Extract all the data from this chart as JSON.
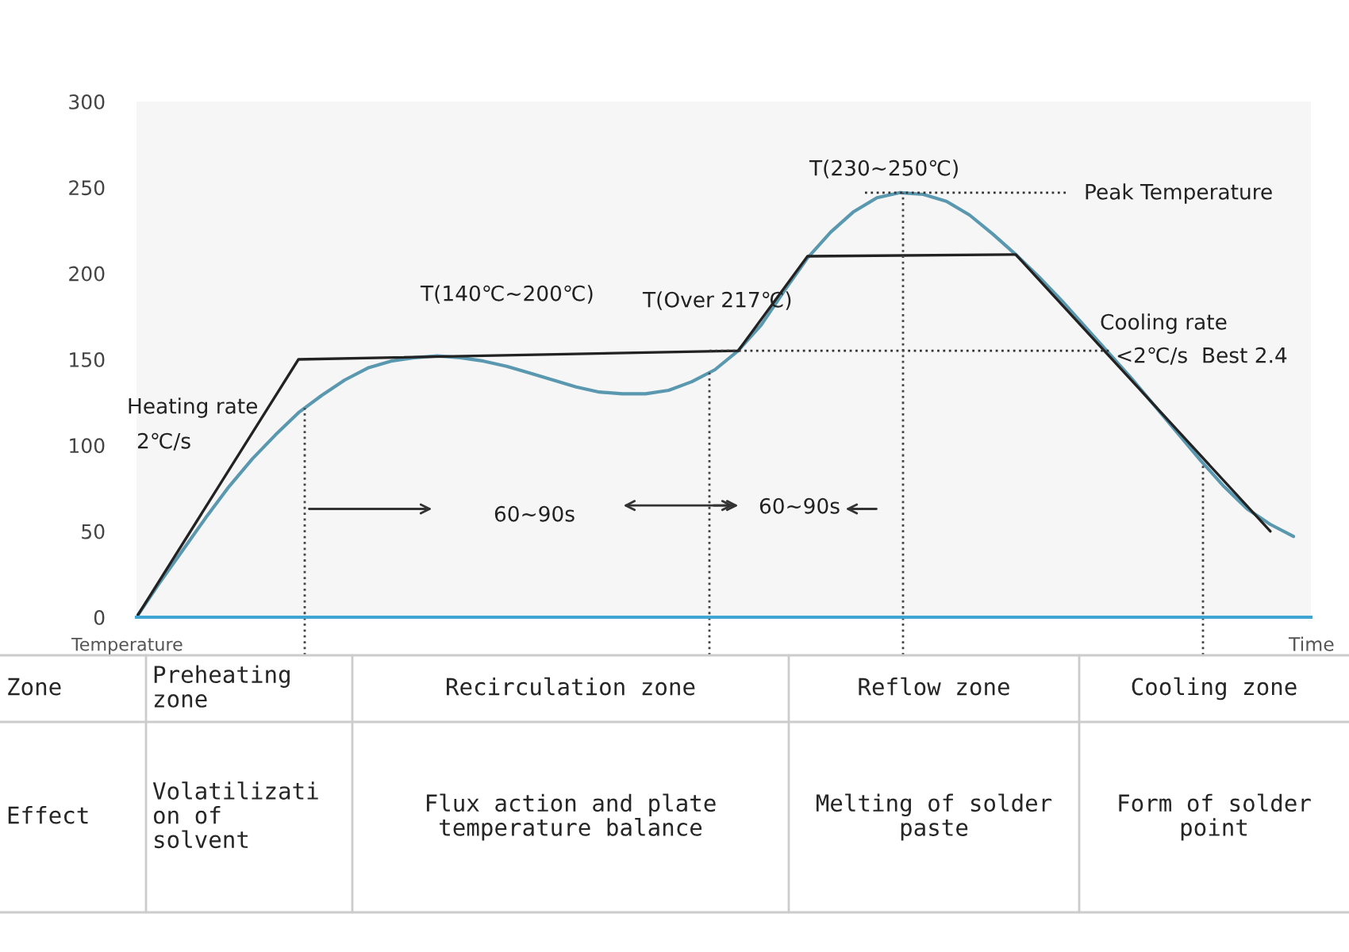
{
  "chart_data": {
    "type": "line",
    "xlabel": "Time",
    "ylabel": "Temperature",
    "categories": [
      null,
      null,
      null,
      null,
      null,
      null,
      null,
      null,
      null,
      null,
      null,
      null,
      null,
      null,
      null,
      null,
      null,
      null,
      null,
      null,
      null,
      null,
      null,
      null,
      null,
      null,
      null,
      null,
      null,
      null,
      null,
      null,
      null,
      null,
      null,
      null,
      null,
      null,
      null,
      null,
      null,
      null,
      null,
      null,
      null,
      null,
      null,
      null,
      null,
      null,
      null
    ],
    "series": [
      {
        "color": "#5a98b0",
        "values": [
          0,
          20,
          39,
          58,
          76,
          92,
          106,
          119,
          129,
          138,
          145,
          149,
          151,
          152,
          151,
          149,
          146,
          142,
          138,
          134,
          131,
          130,
          130,
          132,
          137,
          144,
          155,
          170,
          190,
          209,
          224,
          236,
          244,
          247,
          246,
          242,
          234,
          223,
          211,
          198,
          184,
          169,
          154,
          139,
          123,
          107,
          91,
          76,
          63,
          54,
          47
        ]
      },
      {
        "color": "#222222",
        "values": [
          0,
          null,
          null,
          null,
          null,
          null,
          null,
          150,
          null,
          null,
          null,
          null,
          null,
          null,
          null,
          null,
          null,
          null,
          null,
          null,
          null,
          null,
          null,
          null,
          null,
          null,
          155,
          null,
          null,
          210,
          null,
          null,
          null,
          null,
          null,
          null,
          null,
          null,
          211,
          null,
          null,
          null,
          null,
          null,
          null,
          null,
          null,
          null,
          null,
          50,
          null
        ]
      }
    ],
    "ylim": [
      0,
      300
    ],
    "yticks": [
      0,
      50,
      100,
      150,
      200,
      250,
      300
    ],
    "grid": false,
    "legend": false,
    "marker": "none",
    "line_style": "solid",
    "ref_lines": [
      {
        "axis": "y",
        "value": 155,
        "line_style": "dotted",
        "color": "#333333"
      },
      {
        "axis": "y",
        "value": 247,
        "line_style": "dotted",
        "color": "#333333"
      }
    ],
    "annotations": [
      "T(140℃~200℃)",
      "T(Over 217℃)",
      "T(230~250℃)",
      "Peak Temperature",
      "Cooling rate",
      "<2℃/s  Best 2.4",
      "Heating rate",
      "2℃/s",
      "60~90s",
      "60~90s",
      "Zone",
      "Preheating\nzone",
      "Recirculation zone",
      "Reflow zone",
      "Cooling zone",
      "Effect",
      "Volatilizati\non of\nsolvent",
      "Flux action and plate\ntemperature balance",
      "Melting of solder\npaste",
      "Form of solder\npoint"
    ]
  }
}
